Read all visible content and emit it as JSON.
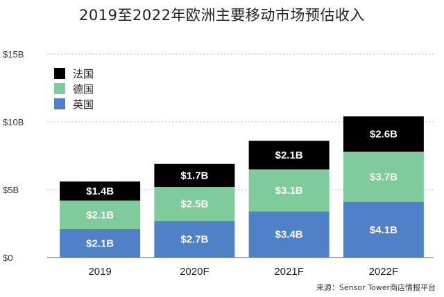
{
  "chart_data": {
    "type": "bar",
    "stacked": true,
    "title": "2019至2022年欧洲主要移动市场预估收入",
    "source": "来源：Sensor Tower商店情报平台",
    "categories": [
      "2019",
      "2020F",
      "2021F",
      "2022F"
    ],
    "series": [
      {
        "name": "英国",
        "values": [
          2.1,
          2.7,
          3.4,
          4.1
        ],
        "labels": [
          "$2.1B",
          "$2.7B",
          "$3.4B",
          "$4.1B"
        ],
        "color": "#5080c8"
      },
      {
        "name": "德国",
        "values": [
          2.1,
          2.5,
          3.1,
          3.7
        ],
        "labels": [
          "$2.1B",
          "$2.5B",
          "$3.1B",
          "$3.7B"
        ],
        "color": "#7fcb9b"
      },
      {
        "name": "法国",
        "values": [
          1.4,
          1.7,
          2.1,
          2.6
        ],
        "labels": [
          "$1.4B",
          "$1.7B",
          "$2.1B",
          "$2.6B"
        ],
        "color": "#000000"
      }
    ],
    "legend_order": [
      "法国",
      "德国",
      "英国"
    ],
    "legend_placement": "top-left",
    "y_ticks": [
      0,
      5,
      10,
      15
    ],
    "y_tick_labels": [
      "$0",
      "$5B",
      "$10B",
      "$15B"
    ],
    "ylim": [
      0,
      15
    ],
    "grid": "horizontal dotted"
  }
}
